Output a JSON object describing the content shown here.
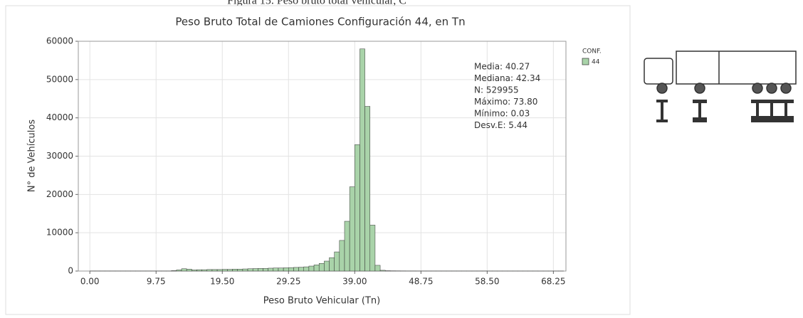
{
  "caption": "Figura 15. Peso bruto total vehicular, C",
  "chart_data": {
    "type": "histogram",
    "title": "Peso Bruto Total de Camiones Configuración 44, en Tn",
    "x_label": "Peso Bruto Vehicular (Tn)",
    "y_label": "N° de Vehículos",
    "legend_title": "CONF.",
    "stats": [
      "Media: 40.27",
      "Mediana: 42.34",
      "N: 529955",
      "Máximo: 73.80",
      "Mínimo: 0.03",
      "Desv.E: 5.44"
    ],
    "bins": [
      0,
      0.75,
      1.5,
      2.25,
      3,
      3.75,
      4.5,
      5.25,
      6,
      6.75,
      7.5,
      8.25,
      9,
      9.75,
      10.5,
      11.25,
      12,
      12.75,
      13.5,
      14.25,
      15,
      15.75,
      16.5,
      17.25,
      18,
      18.75,
      19.5,
      20.25,
      21,
      21.75,
      22.5,
      23.25,
      24,
      24.75,
      25.5,
      26.25,
      27,
      27.75,
      28.5,
      29.25,
      30,
      30.75,
      31.5,
      32.25,
      33,
      33.75,
      34.5,
      35.25,
      36,
      36.75,
      37.5,
      38.25,
      39,
      39.75,
      40.5,
      41.25,
      42,
      42.75,
      43.5,
      44.25,
      45,
      45.75,
      46.5,
      47.25,
      48,
      48.75,
      49.5,
      50.25,
      51,
      51.75,
      52.5,
      53.25,
      54,
      54.75,
      55.5,
      56.25,
      57,
      57.75,
      58.5,
      59.25,
      60,
      60.75,
      61.5,
      62.25,
      63,
      63.75,
      64.5,
      65.25,
      66,
      66.75,
      67.5,
      68.25,
      69,
      69.75
    ],
    "series": [
      {
        "name": "44",
        "color": "#a9d3a9",
        "values": [
          20,
          20,
          20,
          20,
          20,
          20,
          20,
          20,
          20,
          20,
          20,
          20,
          20,
          20,
          20,
          20,
          100,
          300,
          600,
          500,
          300,
          350,
          350,
          400,
          400,
          400,
          450,
          450,
          500,
          500,
          550,
          600,
          650,
          700,
          700,
          750,
          800,
          800,
          850,
          900,
          950,
          1000,
          1100,
          1300,
          1600,
          2000,
          2600,
          3500,
          5000,
          8000,
          13000,
          22000,
          33000,
          58000,
          43000,
          12000,
          1500,
          200,
          80,
          60,
          50,
          40,
          30,
          30,
          20,
          20,
          20,
          20,
          20,
          20,
          20,
          20,
          20,
          20,
          20,
          20,
          20,
          20,
          15,
          15,
          15,
          15,
          15,
          15,
          15,
          15,
          15,
          15,
          10,
          10,
          10,
          10,
          10
        ]
      }
    ],
    "xlim": [
      -1.7,
      70.1
    ],
    "xticks": [
      {
        "value": 0,
        "label": "0.00"
      },
      9.75,
      {
        "value": 19.5,
        "label": "19.50"
      },
      29.25,
      {
        "value": 39,
        "label": "39.00"
      },
      48.75,
      {
        "value": 58.5,
        "label": "58.50"
      },
      68.25
    ],
    "ylim": [
      0,
      60000
    ],
    "yticks": [
      0,
      10000,
      20000,
      30000,
      40000,
      50000,
      60000
    ],
    "grid": true
  }
}
